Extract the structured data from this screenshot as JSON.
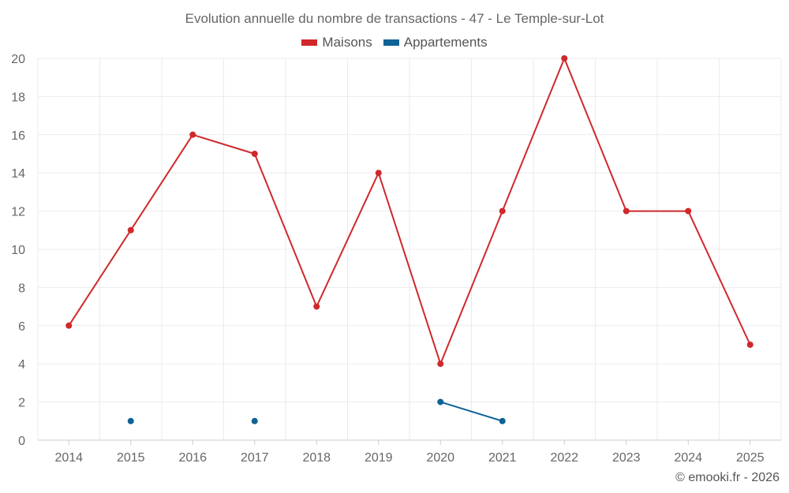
{
  "page": {
    "credit": "© emooki.fr - 2026"
  },
  "chart_data": {
    "type": "line",
    "title": "Evolution annuelle du nombre de transactions - 47 - Le Temple-sur-Lot",
    "categories": [
      "2014",
      "2015",
      "2016",
      "2017",
      "2018",
      "2019",
      "2020",
      "2021",
      "2022",
      "2023",
      "2024",
      "2025"
    ],
    "series": [
      {
        "name": "Maisons",
        "color": "#d0282b",
        "values": [
          6,
          11,
          16,
          15,
          7,
          14,
          4,
          12,
          20,
          12,
          12,
          5
        ]
      },
      {
        "name": "Appartements",
        "color": "#0f6296",
        "values": [
          null,
          1,
          null,
          1,
          null,
          null,
          2,
          1,
          null,
          null,
          null,
          null
        ]
      }
    ],
    "ylim": [
      0,
      20
    ],
    "yticks": [
      0,
      2,
      4,
      6,
      8,
      10,
      12,
      14,
      16,
      18,
      20
    ],
    "grid": true,
    "legend_position": "top-center",
    "xlabel": "",
    "ylabel": ""
  }
}
